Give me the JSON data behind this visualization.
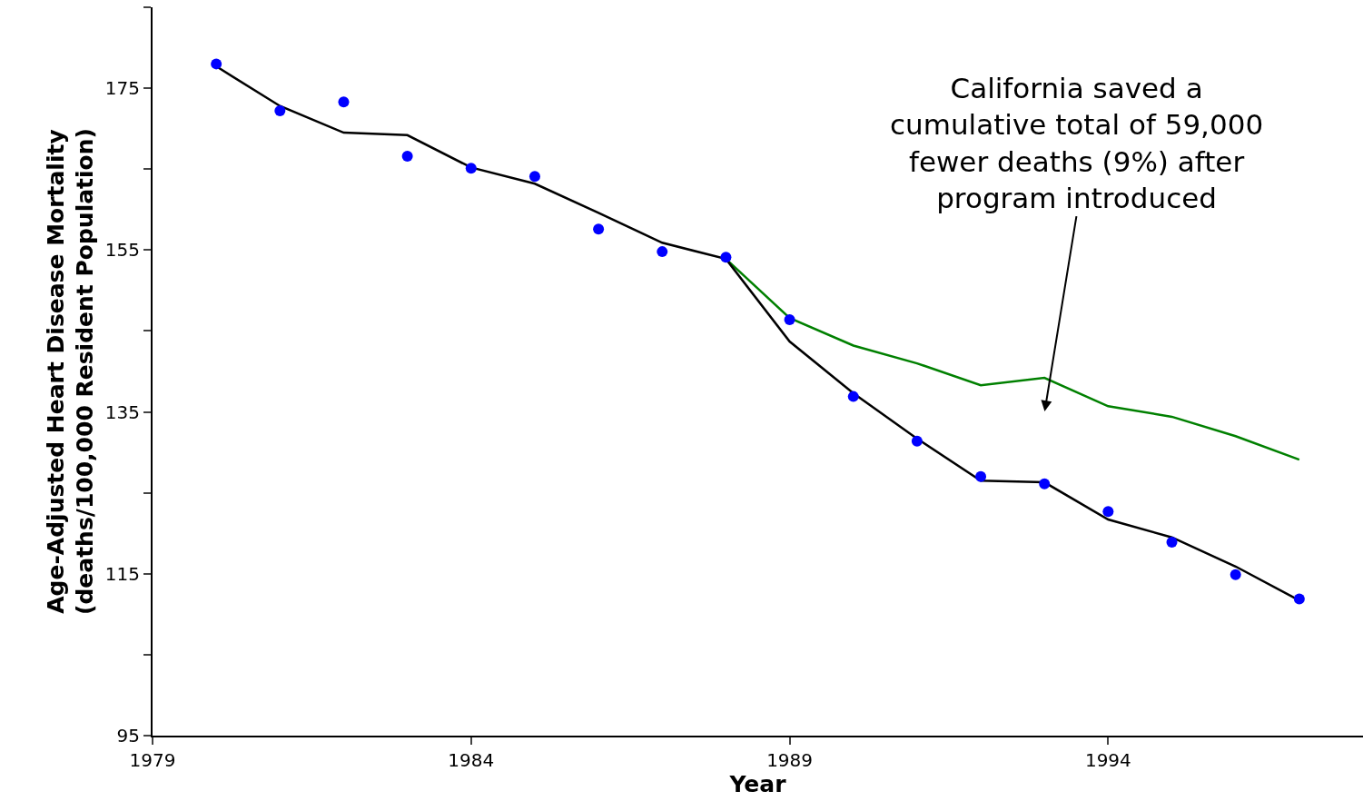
{
  "chart_data": {
    "type": "line",
    "xlabel": "Year",
    "ylabel": "Age-Adjusted Heart Disease Mortality\n(deaths/100,000 Resident Population)",
    "x": [
      1980,
      1981,
      1982,
      1983,
      1984,
      1985,
      1986,
      1987,
      1988,
      1989,
      1990,
      1991,
      1992,
      1993,
      1994,
      1995,
      1996,
      1997
    ],
    "series": [
      {
        "color": "#008000",
        "x": [
          1988,
          1989,
          1990,
          1991,
          1992,
          1993,
          1994,
          1995,
          1996,
          1997
        ],
        "values": [
          153.9,
          146.6,
          143.2,
          141.0,
          138.3,
          139.2,
          135.7,
          134.4,
          132.0,
          129.1
        ]
      },
      {
        "color": "#000000",
        "values": [
          177.7,
          172.8,
          169.5,
          169.2,
          165.2,
          163.2,
          159.6,
          155.9,
          153.9,
          143.7,
          137.3,
          131.7,
          126.5,
          126.3,
          121.7,
          119.5,
          115.9,
          111.7
        ]
      },
      {
        "type": "scatter",
        "color": "#0000ff",
        "marker": "circle",
        "values": [
          178.0,
          172.2,
          173.3,
          166.6,
          165.1,
          164.1,
          157.6,
          154.8,
          154.1,
          146.4,
          136.9,
          131.4,
          127.0,
          126.1,
          122.7,
          118.9,
          114.9,
          111.9
        ]
      }
    ],
    "xlim": [
      1979,
      1998
    ],
    "xticks": [
      1979,
      1984,
      1989,
      1994
    ],
    "ylim": [
      95,
      185
    ],
    "yticks": [
      95,
      {
        "value": 105,
        "label": null
      },
      115,
      {
        "value": 125,
        "label": null
      },
      135,
      {
        "value": 145,
        "label": null
      },
      155,
      {
        "value": 165,
        "label": null
      },
      175,
      {
        "value": 185,
        "label": null
      }
    ],
    "annotations": [
      "California saved a\ncumulative total of 59,000\nfewer deaths (9%) after\nprogram introduced"
    ],
    "legend": false
  }
}
